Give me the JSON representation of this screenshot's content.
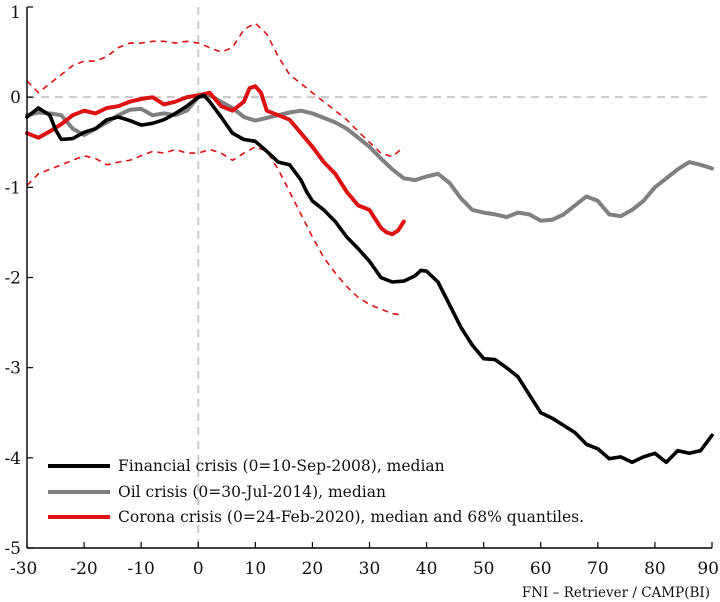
{
  "chart_data": {
    "type": "line",
    "xlim": [
      -30,
      90
    ],
    "ylim": [
      -5,
      1
    ],
    "x_ticks": [
      "-30",
      "-20",
      "-10",
      "0",
      "10",
      "20",
      "30",
      "40",
      "50",
      "60",
      "70",
      "80",
      "90"
    ],
    "y_ticks": [
      "1",
      "0",
      "-1",
      "-2",
      "-3",
      "-4",
      "-5"
    ],
    "grid": false,
    "reference_lines": {
      "x": 0,
      "y": 0,
      "style": "dashed"
    },
    "legend_position": "bottom-left",
    "source_note": "FNI – Retriever / CAMP(BI)",
    "colors": {
      "financial": "#000000",
      "oil": "#808080",
      "corona": "#dd1111"
    },
    "series": [
      {
        "key": "financial",
        "name": "Financial crisis (0=10-Sep-2008), median",
        "points": [
          [
            -30,
            -0.22
          ],
          [
            -28,
            -0.12
          ],
          [
            -26,
            -0.2
          ],
          [
            -25,
            -0.36
          ],
          [
            -24,
            -0.47
          ],
          [
            -22,
            -0.46
          ],
          [
            -20,
            -0.39
          ],
          [
            -18,
            -0.35
          ],
          [
            -16,
            -0.25
          ],
          [
            -14,
            -0.22
          ],
          [
            -12,
            -0.26
          ],
          [
            -10,
            -0.31
          ],
          [
            -8,
            -0.29
          ],
          [
            -6,
            -0.25
          ],
          [
            -4,
            -0.18
          ],
          [
            -2,
            -0.1
          ],
          [
            0,
            0.0
          ],
          [
            1,
            0.02
          ],
          [
            2,
            -0.05
          ],
          [
            4,
            -0.22
          ],
          [
            6,
            -0.4
          ],
          [
            8,
            -0.47
          ],
          [
            10,
            -0.49
          ],
          [
            12,
            -0.6
          ],
          [
            14,
            -0.72
          ],
          [
            16,
            -0.75
          ],
          [
            18,
            -0.92
          ],
          [
            19,
            -1.05
          ],
          [
            20,
            -1.15
          ],
          [
            22,
            -1.25
          ],
          [
            24,
            -1.38
          ],
          [
            26,
            -1.55
          ],
          [
            28,
            -1.68
          ],
          [
            30,
            -1.82
          ],
          [
            32,
            -2.0
          ],
          [
            34,
            -2.05
          ],
          [
            36,
            -2.04
          ],
          [
            38,
            -1.98
          ],
          [
            39,
            -1.92
          ],
          [
            40,
            -1.93
          ],
          [
            42,
            -2.05
          ],
          [
            44,
            -2.3
          ],
          [
            46,
            -2.55
          ],
          [
            48,
            -2.75
          ],
          [
            50,
            -2.9
          ],
          [
            52,
            -2.91
          ],
          [
            54,
            -3.0
          ],
          [
            56,
            -3.1
          ],
          [
            58,
            -3.3
          ],
          [
            60,
            -3.5
          ],
          [
            62,
            -3.56
          ],
          [
            64,
            -3.64
          ],
          [
            66,
            -3.72
          ],
          [
            68,
            -3.85
          ],
          [
            70,
            -3.9
          ],
          [
            72,
            -4.01
          ],
          [
            74,
            -3.99
          ],
          [
            76,
            -4.05
          ],
          [
            78,
            -3.99
          ],
          [
            80,
            -3.95
          ],
          [
            82,
            -4.05
          ],
          [
            84,
            -3.92
          ],
          [
            86,
            -3.95
          ],
          [
            88,
            -3.92
          ],
          [
            90,
            -3.75
          ]
        ]
      },
      {
        "key": "oil",
        "name": "Oil crisis (0=30-Jul-2014), median",
        "points": [
          [
            -30,
            -0.2
          ],
          [
            -28,
            -0.17
          ],
          [
            -26,
            -0.18
          ],
          [
            -24,
            -0.2
          ],
          [
            -22,
            -0.35
          ],
          [
            -20,
            -0.42
          ],
          [
            -18,
            -0.35
          ],
          [
            -16,
            -0.28
          ],
          [
            -14,
            -0.2
          ],
          [
            -12,
            -0.14
          ],
          [
            -10,
            -0.13
          ],
          [
            -8,
            -0.2
          ],
          [
            -6,
            -0.18
          ],
          [
            -4,
            -0.2
          ],
          [
            -2,
            -0.15
          ],
          [
            0,
            0.0
          ],
          [
            2,
            0.02
          ],
          [
            4,
            -0.05
          ],
          [
            6,
            -0.12
          ],
          [
            8,
            -0.22
          ],
          [
            10,
            -0.26
          ],
          [
            12,
            -0.23
          ],
          [
            14,
            -0.2
          ],
          [
            16,
            -0.17
          ],
          [
            18,
            -0.15
          ],
          [
            20,
            -0.18
          ],
          [
            22,
            -0.23
          ],
          [
            24,
            -0.28
          ],
          [
            26,
            -0.35
          ],
          [
            28,
            -0.45
          ],
          [
            30,
            -0.55
          ],
          [
            32,
            -0.68
          ],
          [
            34,
            -0.8
          ],
          [
            36,
            -0.9
          ],
          [
            38,
            -0.92
          ],
          [
            40,
            -0.88
          ],
          [
            42,
            -0.85
          ],
          [
            44,
            -0.95
          ],
          [
            46,
            -1.12
          ],
          [
            48,
            -1.25
          ],
          [
            50,
            -1.28
          ],
          [
            52,
            -1.3
          ],
          [
            54,
            -1.33
          ],
          [
            56,
            -1.28
          ],
          [
            58,
            -1.3
          ],
          [
            60,
            -1.37
          ],
          [
            62,
            -1.36
          ],
          [
            64,
            -1.3
          ],
          [
            66,
            -1.2
          ],
          [
            68,
            -1.1
          ],
          [
            70,
            -1.15
          ],
          [
            72,
            -1.3
          ],
          [
            74,
            -1.32
          ],
          [
            76,
            -1.25
          ],
          [
            78,
            -1.15
          ],
          [
            80,
            -1.0
          ],
          [
            82,
            -0.9
          ],
          [
            84,
            -0.8
          ],
          [
            86,
            -0.72
          ],
          [
            88,
            -0.75
          ],
          [
            90,
            -0.79
          ]
        ]
      },
      {
        "key": "corona",
        "name": "Corona crisis (0=24-Feb-2020), median and 68% quantiles.",
        "points": [
          [
            -30,
            -0.4
          ],
          [
            -28,
            -0.45
          ],
          [
            -26,
            -0.38
          ],
          [
            -24,
            -0.3
          ],
          [
            -22,
            -0.2
          ],
          [
            -20,
            -0.15
          ],
          [
            -18,
            -0.18
          ],
          [
            -16,
            -0.12
          ],
          [
            -14,
            -0.1
          ],
          [
            -12,
            -0.05
          ],
          [
            -10,
            -0.02
          ],
          [
            -8,
            0.0
          ],
          [
            -6,
            -0.08
          ],
          [
            -4,
            -0.05
          ],
          [
            -2,
            0.0
          ],
          [
            0,
            0.02
          ],
          [
            2,
            0.05
          ],
          [
            4,
            -0.1
          ],
          [
            6,
            -0.15
          ],
          [
            8,
            -0.05
          ],
          [
            9,
            0.1
          ],
          [
            10,
            0.12
          ],
          [
            11,
            0.05
          ],
          [
            12,
            -0.15
          ],
          [
            14,
            -0.2
          ],
          [
            16,
            -0.25
          ],
          [
            18,
            -0.4
          ],
          [
            20,
            -0.55
          ],
          [
            22,
            -0.72
          ],
          [
            24,
            -0.85
          ],
          [
            26,
            -1.05
          ],
          [
            28,
            -1.2
          ],
          [
            30,
            -1.25
          ],
          [
            32,
            -1.45
          ],
          [
            33,
            -1.5
          ],
          [
            34,
            -1.52
          ],
          [
            35,
            -1.48
          ],
          [
            36,
            -1.38
          ]
        ],
        "q_low": [
          [
            -30,
            -0.98
          ],
          [
            -28,
            -0.85
          ],
          [
            -26,
            -0.8
          ],
          [
            -24,
            -0.75
          ],
          [
            -22,
            -0.7
          ],
          [
            -20,
            -0.65
          ],
          [
            -18,
            -0.68
          ],
          [
            -16,
            -0.75
          ],
          [
            -14,
            -0.72
          ],
          [
            -12,
            -0.7
          ],
          [
            -10,
            -0.65
          ],
          [
            -8,
            -0.6
          ],
          [
            -6,
            -0.62
          ],
          [
            -4,
            -0.58
          ],
          [
            -2,
            -0.62
          ],
          [
            0,
            -0.62
          ],
          [
            2,
            -0.58
          ],
          [
            4,
            -0.62
          ],
          [
            6,
            -0.7
          ],
          [
            8,
            -0.62
          ],
          [
            10,
            -0.55
          ],
          [
            12,
            -0.6
          ],
          [
            14,
            -0.8
          ],
          [
            16,
            -1.05
          ],
          [
            18,
            -1.3
          ],
          [
            20,
            -1.55
          ],
          [
            22,
            -1.78
          ],
          [
            24,
            -1.95
          ],
          [
            26,
            -2.1
          ],
          [
            28,
            -2.22
          ],
          [
            30,
            -2.3
          ],
          [
            32,
            -2.35
          ],
          [
            34,
            -2.4
          ],
          [
            36,
            -2.42
          ]
        ],
        "q_high": [
          [
            -30,
            0.18
          ],
          [
            -28,
            0.05
          ],
          [
            -26,
            0.15
          ],
          [
            -24,
            0.25
          ],
          [
            -22,
            0.35
          ],
          [
            -20,
            0.4
          ],
          [
            -18,
            0.4
          ],
          [
            -16,
            0.45
          ],
          [
            -14,
            0.55
          ],
          [
            -12,
            0.6
          ],
          [
            -10,
            0.6
          ],
          [
            -8,
            0.62
          ],
          [
            -6,
            0.62
          ],
          [
            -4,
            0.6
          ],
          [
            -2,
            0.62
          ],
          [
            0,
            0.6
          ],
          [
            2,
            0.55
          ],
          [
            4,
            0.5
          ],
          [
            6,
            0.55
          ],
          [
            8,
            0.75
          ],
          [
            10,
            0.82
          ],
          [
            12,
            0.7
          ],
          [
            14,
            0.45
          ],
          [
            16,
            0.25
          ],
          [
            18,
            0.15
          ],
          [
            20,
            0.05
          ],
          [
            22,
            -0.05
          ],
          [
            24,
            -0.15
          ],
          [
            26,
            -0.25
          ],
          [
            28,
            -0.38
          ],
          [
            30,
            -0.5
          ],
          [
            32,
            -0.62
          ],
          [
            34,
            -0.66
          ],
          [
            36,
            -0.55
          ]
        ]
      }
    ]
  }
}
